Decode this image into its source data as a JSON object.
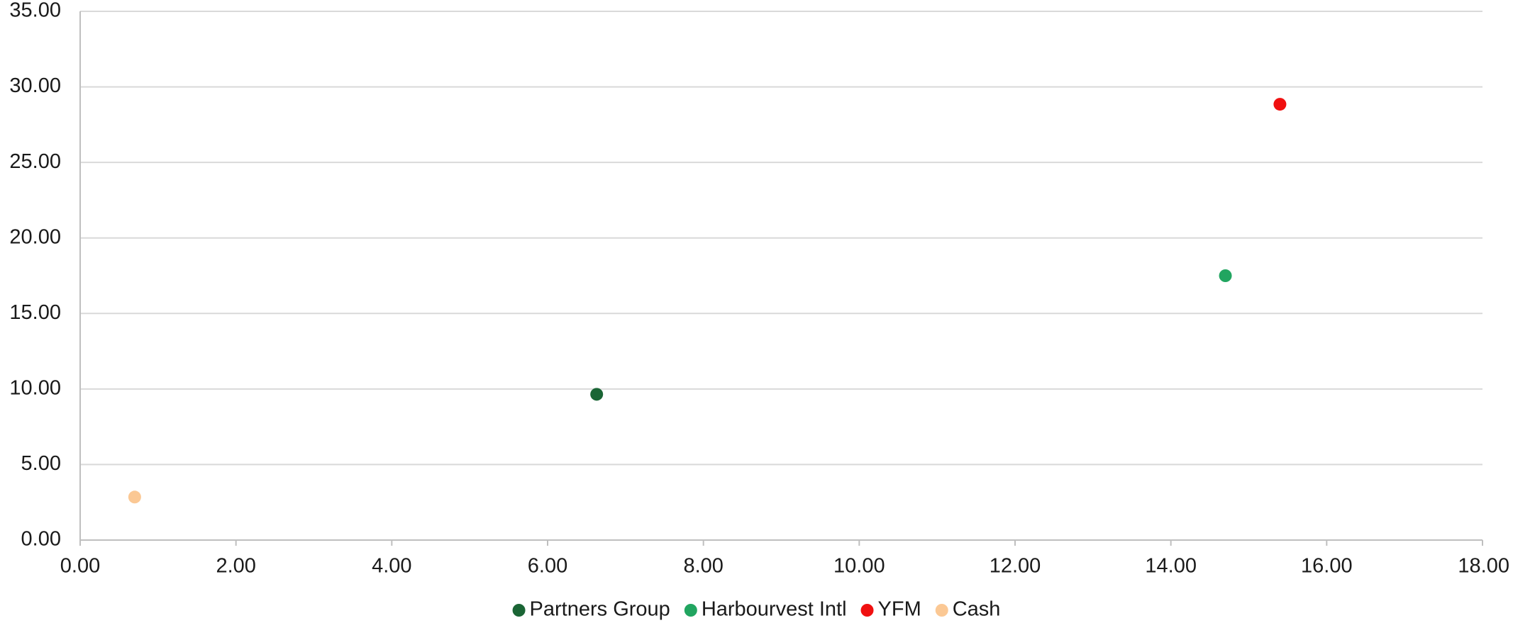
{
  "chart_data": {
    "type": "scatter",
    "title": "",
    "xlabel": "",
    "ylabel": "",
    "xlim": [
      0,
      18
    ],
    "ylim": [
      0,
      35
    ],
    "x_ticks": [
      "0.00",
      "2.00",
      "4.00",
      "6.00",
      "8.00",
      "10.00",
      "12.00",
      "14.00",
      "16.00",
      "18.00"
    ],
    "y_ticks": [
      "0.00",
      "5.00",
      "10.00",
      "15.00",
      "20.00",
      "25.00",
      "30.00",
      "35.00"
    ],
    "grid": "horizontal",
    "legend_position": "bottom",
    "series": [
      {
        "name": "Partners Group",
        "color": "#1a6535",
        "points": [
          {
            "x": 6.63,
            "y": 9.65
          }
        ]
      },
      {
        "name": "Harbourvest Intl",
        "color": "#21a560",
        "points": [
          {
            "x": 14.7,
            "y": 17.5
          }
        ]
      },
      {
        "name": "YFM",
        "color": "#f01010",
        "points": [
          {
            "x": 15.4,
            "y": 28.85
          }
        ]
      },
      {
        "name": "Cash",
        "color": "#fbc894",
        "points": [
          {
            "x": 0.7,
            "y": 2.85
          }
        ]
      }
    ]
  }
}
